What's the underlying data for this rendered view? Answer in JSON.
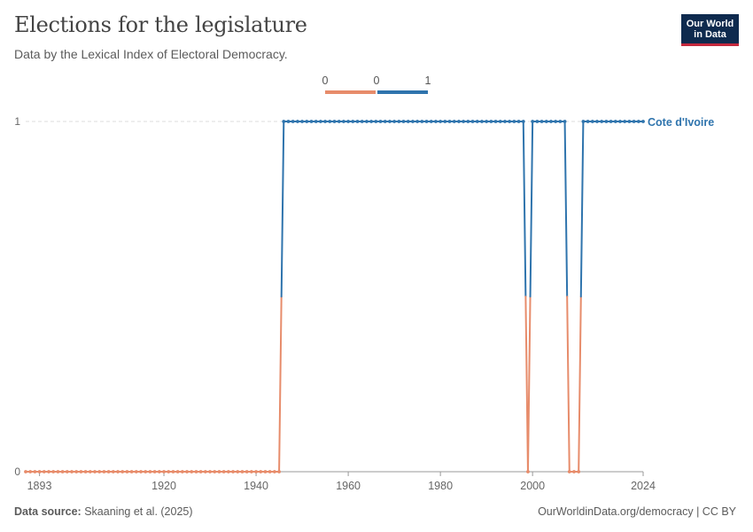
{
  "header": {
    "title": "Elections for the legislature",
    "subtitle": "Data by the Lexical Index of Electoral Democracy."
  },
  "logo": {
    "line1": "Our World",
    "line2": "in Data"
  },
  "footer": {
    "source_label": "Data source:",
    "source_text": "Skaaning et al. (2025)",
    "license": "OurWorldinData.org/democracy | CC BY"
  },
  "colors": {
    "zero": "#e78c6b",
    "one": "#2f74ad",
    "grid": "#dddddd",
    "axis": "#999999"
  },
  "legend": {
    "labels": [
      "0",
      "0",
      "1"
    ]
  },
  "chart_data": {
    "type": "line",
    "title": "Elections for the legislature",
    "subtitle": "Data by the Lexical Index of Electoral Democracy.",
    "xlabel": "",
    "ylabel": "",
    "xlim": [
      1890,
      2024
    ],
    "ylim": [
      0,
      1
    ],
    "x_ticks": [
      1893,
      1920,
      1940,
      1960,
      1980,
      2000,
      2024
    ],
    "y_ticks": [
      0,
      1
    ],
    "grid": "horizontal dashed",
    "legend_placement": "top-center",
    "series": [
      {
        "name": "Cote d'Ivoire",
        "segments": [
          {
            "start": 1890,
            "end": 1945,
            "value": 0
          },
          {
            "start": 1946,
            "end": 1998,
            "value": 1
          },
          {
            "start": 1999,
            "end": 1999,
            "value": 0
          },
          {
            "start": 2000,
            "end": 2007,
            "value": 1
          },
          {
            "start": 2008,
            "end": 2010,
            "value": 0
          },
          {
            "start": 2011,
            "end": 2024,
            "value": 1
          }
        ]
      }
    ]
  }
}
